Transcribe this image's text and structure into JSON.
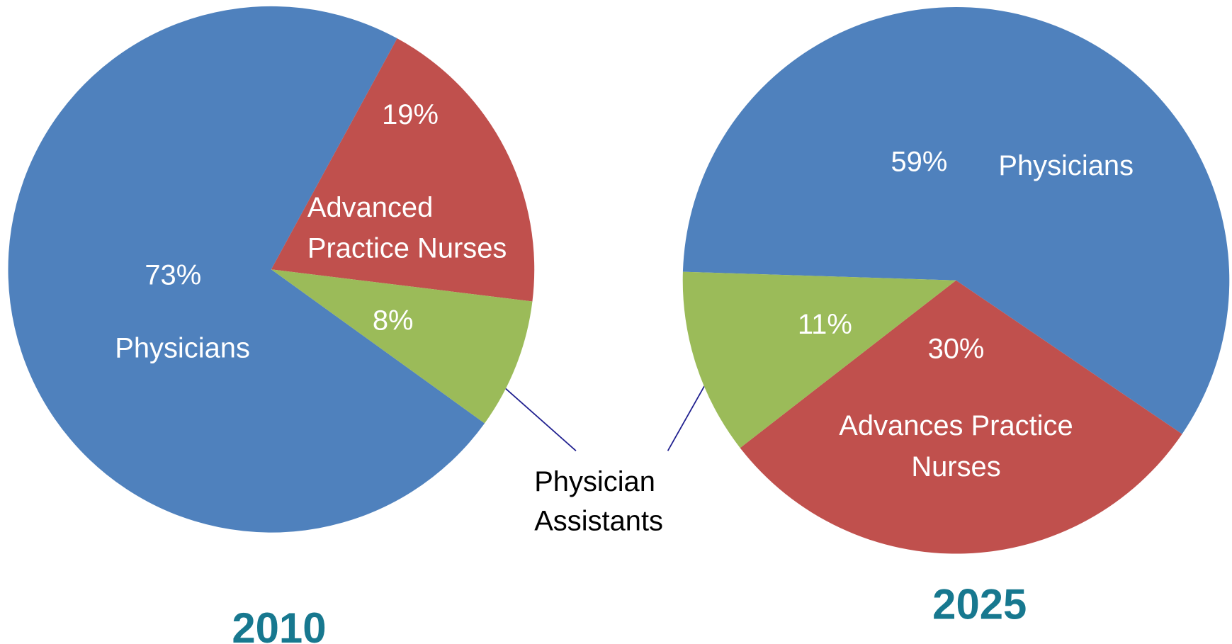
{
  "chart_data": [
    {
      "type": "pie",
      "title": "2010",
      "categories": [
        "Physicians",
        "Advanced Practice Nurses",
        null
      ],
      "values": [
        73,
        19,
        8
      ],
      "value_labels": [
        "73%",
        "19%",
        "8%"
      ],
      "colors": [
        "#4f81bd",
        "#c0504d",
        "#9bbb59"
      ]
    },
    {
      "type": "pie",
      "title": "2025",
      "categories": [
        "Physicians",
        "Advances Practice Nurses",
        null
      ],
      "values": [
        59,
        30,
        11
      ],
      "value_labels": [
        "59%",
        "30%",
        "11%"
      ],
      "colors": [
        "#4f81bd",
        "#c0504d",
        "#9bbb59"
      ]
    }
  ],
  "annotation": "Physician Assistants"
}
